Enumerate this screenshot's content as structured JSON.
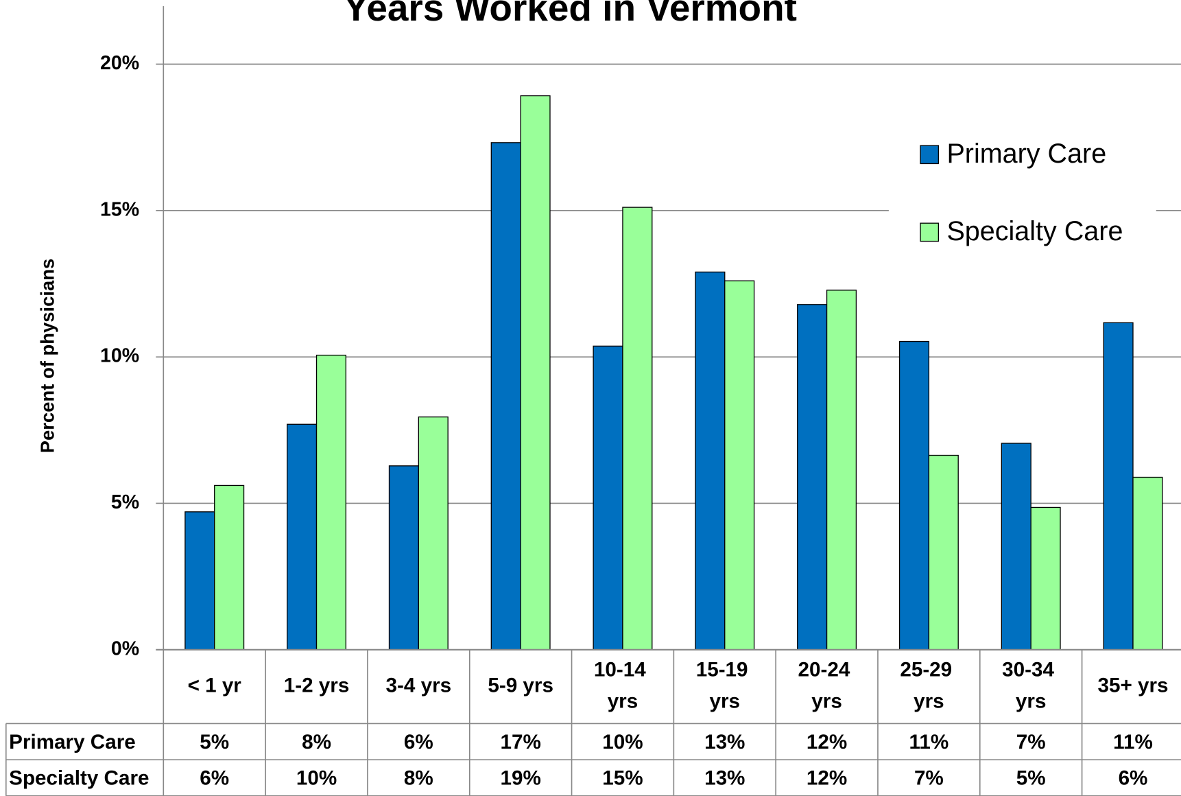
{
  "chart_data": {
    "type": "bar",
    "title": "Years Worked in Vermont",
    "ylabel": "Percent of physicians",
    "categories": [
      "< 1 yr",
      "1-2 yrs",
      "3-4 yrs",
      "5-9 yrs",
      "10-14 yrs",
      "15-19 yrs",
      "20-24 yrs",
      "25-29 yrs",
      "30-34 yrs",
      "35+ yrs"
    ],
    "series": [
      {
        "name": "Primary Care",
        "color": "#0070c0",
        "values": [
          4.71,
          7.7,
          6.28,
          17.32,
          10.37,
          12.9,
          11.79,
          10.53,
          7.05,
          11.17
        ],
        "value_labels": [
          "5%",
          "8%",
          "6%",
          "17%",
          "10%",
          "13%",
          "12%",
          "11%",
          "7%",
          "11%"
        ]
      },
      {
        "name": "Specialty Care",
        "color": "#99ff99",
        "values": [
          5.61,
          10.06,
          7.95,
          18.92,
          15.11,
          12.6,
          12.28,
          6.64,
          4.86,
          5.89
        ],
        "value_labels": [
          "6%",
          "10%",
          "8%",
          "19%",
          "15%",
          "13%",
          "12%",
          "7%",
          "5%",
          "6%"
        ]
      }
    ],
    "ylim": [
      0,
      20
    ],
    "yticks": [
      {
        "value": 0,
        "label": "0%"
      },
      {
        "value": 5,
        "label": "5%"
      },
      {
        "value": 10,
        "label": "10%"
      },
      {
        "value": 15,
        "label": "15%"
      },
      {
        "value": 20,
        "label": "20%"
      }
    ],
    "grid": true,
    "legend": "upper right"
  }
}
